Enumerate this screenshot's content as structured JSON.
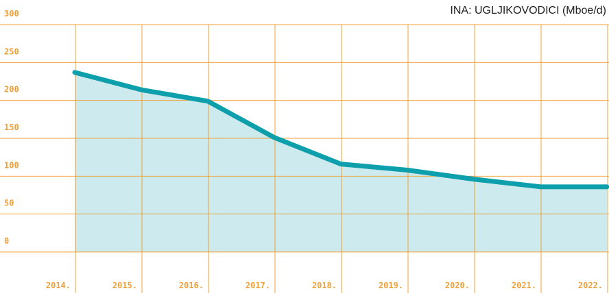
{
  "chart_data": {
    "type": "line",
    "title": "INA: UGLJIKOVODICI (Mboe/d)",
    "categories": [
      "2014.",
      "2015.",
      "2016.",
      "2017.",
      "2018.",
      "2019.",
      "2020.",
      "2021.",
      "2022."
    ],
    "series": [
      {
        "name": "Ugljikovodici",
        "color": "#0e9fad",
        "values": [
          237,
          214,
          199,
          151,
          116,
          108,
          96,
          86,
          86
        ]
      }
    ],
    "fill_color": "#cdebee",
    "grid_color": "#f0a03a",
    "ylim": [
      0,
      300
    ],
    "yticks": [
      0,
      50,
      100,
      150,
      200,
      250,
      300
    ],
    "grid": true
  }
}
